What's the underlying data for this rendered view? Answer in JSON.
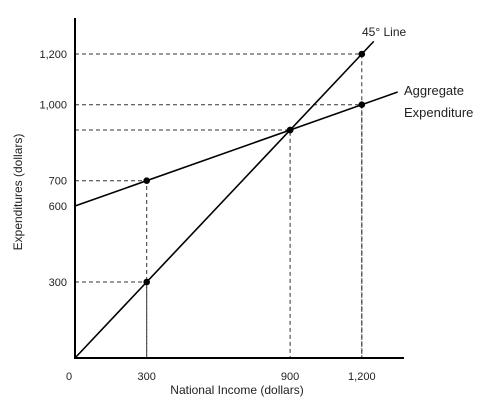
{
  "chart_data": {
    "type": "line",
    "xlabel": "National Income (dollars)",
    "ylabel": "Expenditures (dollars)",
    "xlim": [
      0,
      1350
    ],
    "ylim": [
      0,
      1400
    ],
    "x_ticks": [
      {
        "value": 0,
        "label": "0"
      },
      {
        "value": 300,
        "label": "300"
      },
      {
        "value": 900,
        "label": "900"
      },
      {
        "value": 1200,
        "label": "1,200"
      }
    ],
    "y_ticks": [
      {
        "value": 300,
        "label": "300"
      },
      {
        "value": 600,
        "label": "600"
      },
      {
        "value": 700,
        "label": "700"
      },
      {
        "value": 1000,
        "label": "1,000"
      },
      {
        "value": 1200,
        "label": "1,200"
      }
    ],
    "series": [
      {
        "name": "45° Line",
        "color": "#000000",
        "x": [
          0,
          1250
        ],
        "y": [
          0,
          1250
        ],
        "points": [
          [
            300,
            300
          ],
          [
            900,
            900
          ],
          [
            1200,
            1200
          ]
        ]
      },
      {
        "name": "Aggregate Expenditure",
        "color": "#000000",
        "x": [
          0,
          1350
        ],
        "y": [
          600,
          1050
        ],
        "points": [
          [
            300,
            700
          ],
          [
            900,
            900
          ],
          [
            1200,
            1000
          ]
        ]
      }
    ],
    "guides": [
      {
        "x": 300,
        "y": 700
      },
      {
        "x": 300,
        "y": 300
      },
      {
        "x": 900,
        "y": 900
      },
      {
        "x": 1200,
        "y": 1200
      },
      {
        "x": 1200,
        "y": 1000
      }
    ],
    "grid": false,
    "legend": "none"
  }
}
